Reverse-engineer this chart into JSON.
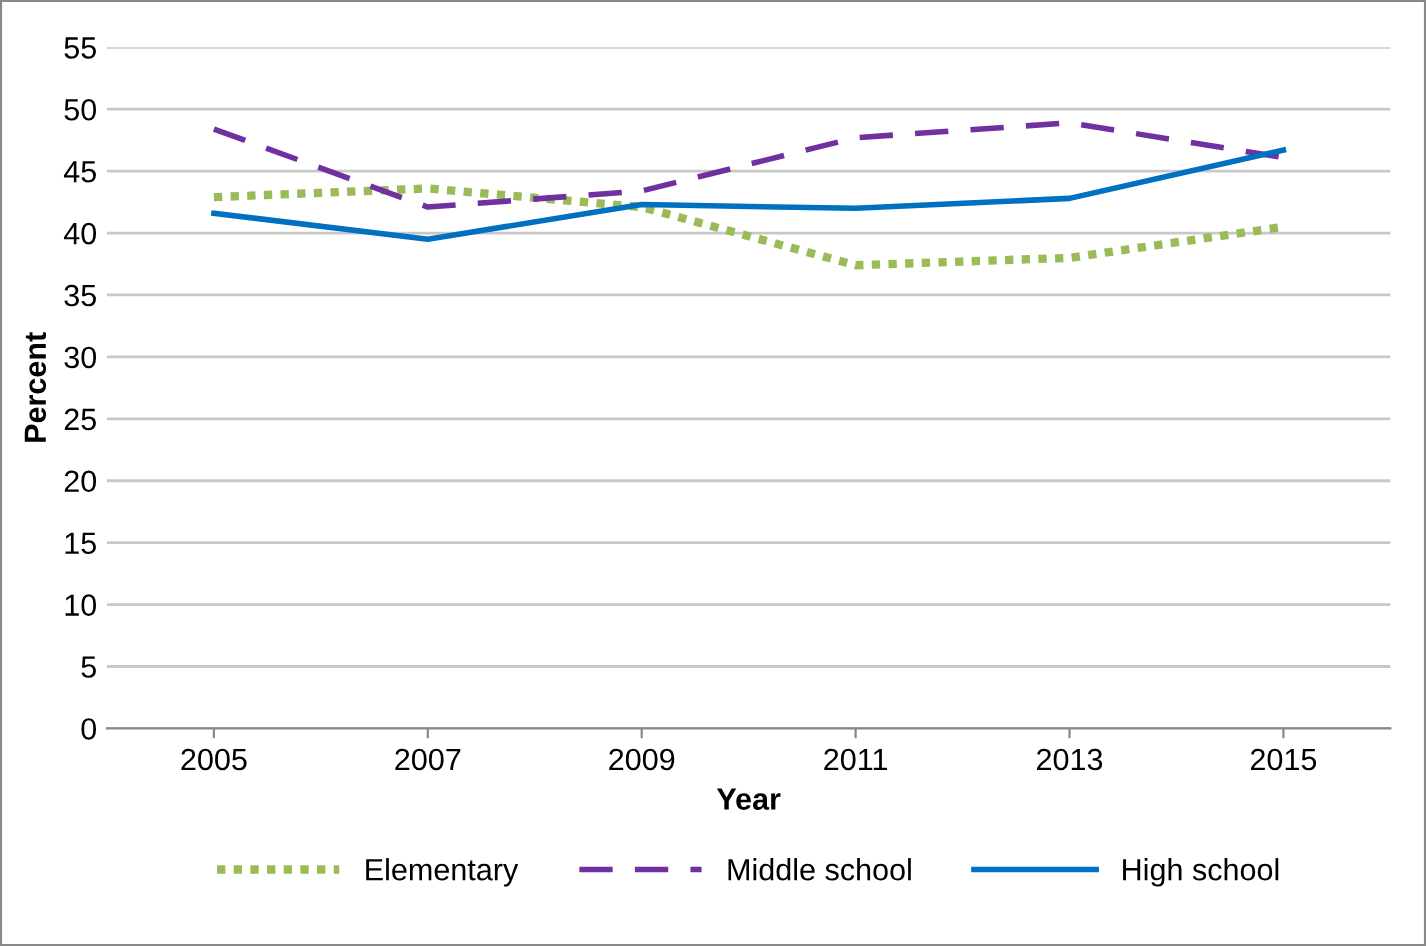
{
  "chart_data": {
    "type": "line",
    "xlabel": "Year",
    "ylabel": "Percent",
    "categories": [
      "2005",
      "2007",
      "2009",
      "2011",
      "2013",
      "2015"
    ],
    "series": [
      {
        "name": "Elementary",
        "color": "#9bbb59",
        "line_style": "dotted",
        "values": [
          42.9,
          43.6,
          42.1,
          37.4,
          38.0,
          40.5
        ]
      },
      {
        "name": "Middle school",
        "color": "#7030a0",
        "line_style": "dashed",
        "values": [
          48.4,
          42.1,
          43.4,
          47.7,
          48.9,
          46.1
        ]
      },
      {
        "name": "High school",
        "color": "#0070c0",
        "line_style": "solid",
        "values": [
          41.6,
          39.5,
          42.3,
          42.0,
          42.8,
          46.7
        ]
      }
    ],
    "ylim": [
      0,
      55
    ],
    "yticks": [
      0,
      5,
      10,
      15,
      20,
      25,
      30,
      35,
      40,
      45,
      50,
      55
    ],
    "grid": "y",
    "legend": "bottom",
    "marker": "none"
  }
}
